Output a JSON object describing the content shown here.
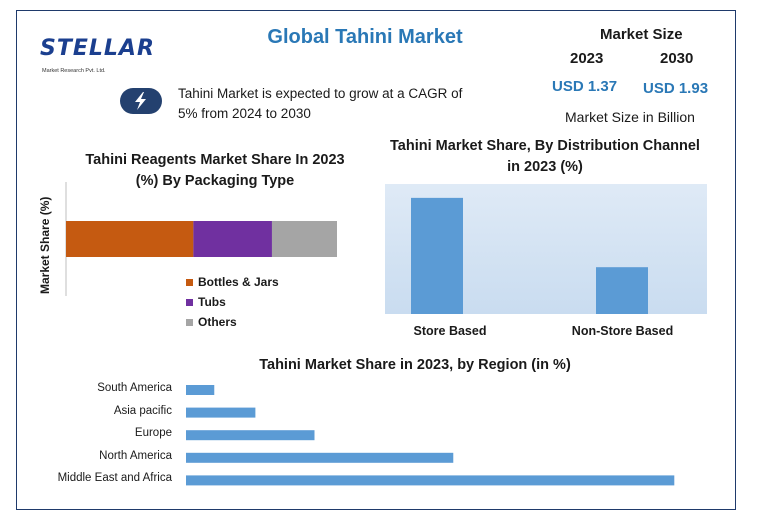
{
  "header": {
    "title": "Global Tahini Market",
    "logo_text": "STELLAR",
    "logo_subtext": "Market Research Pvt. Ltd.",
    "cagr_text": "Tahini Market is expected to grow at a CAGR of 5% from 2024 to 2030",
    "bolt_icon": "lightning-bolt-icon"
  },
  "market_size": {
    "title": "Market Size",
    "year_1": "2023",
    "year_2": "2030",
    "value_1": "USD 1.37",
    "value_2": "USD 1.93",
    "unit": "Market Size in Billion"
  },
  "colors": {
    "accent_blue": "#2a78b6",
    "bar_blue": "#5b9bd5",
    "bottles": "#c55a11",
    "tubs": "#7030a0",
    "others": "#a5a5a5",
    "badge": "#24416f"
  },
  "chart_data": [
    {
      "type": "bar",
      "orientation": "horizontal-stacked",
      "title": "Tahini Reagents Market Share In 2023 (%) By Packaging Type",
      "ylabel": "Market Share (%)",
      "legend_position": "bottom",
      "series": [
        {
          "name": "Bottles & Jars",
          "values": [
            47
          ]
        },
        {
          "name": "Tubs",
          "values": [
            29
          ]
        },
        {
          "name": "Others",
          "values": [
            24
          ]
        }
      ]
    },
    {
      "type": "bar",
      "title": "Tahini Market Share, By Distribution Channel in 2023 (%)",
      "categories": [
        "Store Based",
        "Non-Store Based"
      ],
      "values": [
        67,
        27
      ],
      "ylim": [
        0,
        75
      ]
    },
    {
      "type": "bar",
      "orientation": "horizontal",
      "title": "Tahini Market Share in 2023, by Region (in %)",
      "categories": [
        "South America",
        "Asia pacific",
        "Europe",
        "North America",
        "Middle East and Africa"
      ],
      "values": [
        5.5,
        13.5,
        25,
        52,
        95
      ],
      "xlim": [
        0,
        100
      ]
    }
  ]
}
